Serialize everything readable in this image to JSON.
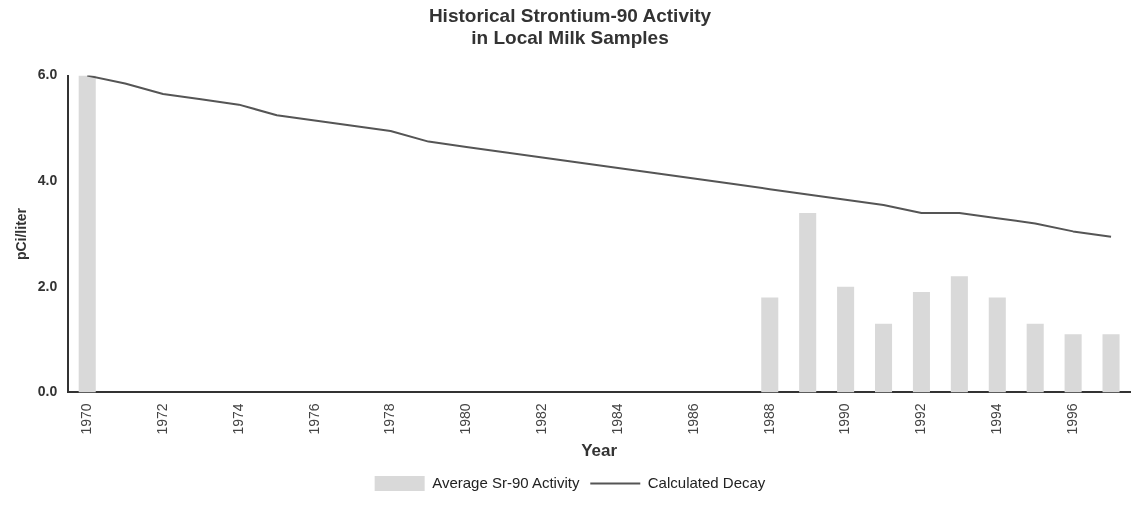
{
  "chart_data": {
    "type": "bar",
    "title": "Historical Strontium-90 Activity\nin Local Milk Samples",
    "xlabel": "Year",
    "ylabel": "pCi/liter",
    "categories": [
      "1970",
      null,
      "1972",
      null,
      "1974",
      null,
      "1976",
      null,
      "1978",
      null,
      "1980",
      null,
      "1982",
      null,
      "1984",
      null,
      "1986",
      null,
      "1988",
      null,
      "1990",
      null,
      "1992",
      null,
      "1994",
      null,
      "1996",
      null
    ],
    "series": [
      {
        "name": "Average Sr-90 Activity",
        "color": "#d9d9d9",
        "values": [
          6.0,
          null,
          null,
          null,
          null,
          null,
          null,
          null,
          null,
          null,
          null,
          null,
          null,
          null,
          null,
          null,
          null,
          null,
          1.8,
          3.4,
          2.0,
          1.3,
          1.9,
          2.2,
          1.8,
          1.3,
          1.1,
          1.1
        ]
      },
      {
        "name": "Calculated Decay",
        "type": "line",
        "color": "#555555",
        "values": [
          6.0,
          5.85,
          5.65,
          5.55,
          5.45,
          5.25,
          5.15,
          5.05,
          4.95,
          4.75,
          4.65,
          4.55,
          4.45,
          4.35,
          4.25,
          4.15,
          4.05,
          3.95,
          3.85,
          3.75,
          3.65,
          3.55,
          3.4,
          3.4,
          3.3,
          3.2,
          3.05,
          2.95
        ]
      }
    ],
    "ylim": [
      0,
      6
    ],
    "yticks": [
      {
        "value": 0,
        "label": "0.0"
      },
      {
        "value": 2,
        "label": "2.0"
      },
      {
        "value": 4,
        "label": "4.0"
      },
      {
        "value": 6,
        "label": "6.0"
      }
    ],
    "grid": false,
    "legend": "bottom",
    "marker": "none",
    "line_style": "solid"
  }
}
